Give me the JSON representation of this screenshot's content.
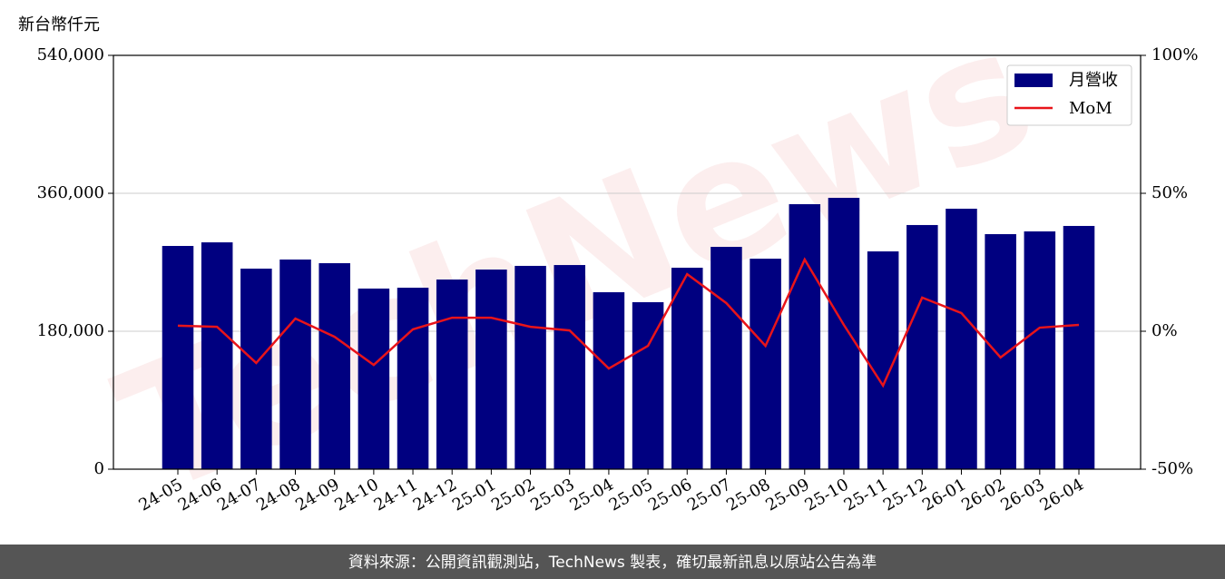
{
  "chart_data": {
    "type": "bar_line",
    "y_axis_label": "新台幣仟元",
    "categories": [
      "24-05",
      "24-06",
      "24-07",
      "24-08",
      "24-09",
      "24-10",
      "24-11",
      "24-12",
      "25-01",
      "25-02",
      "25-03",
      "25-04",
      "25-05",
      "25-06",
      "25-07",
      "25-08",
      "25-09",
      "25-10",
      "25-11",
      "25-12",
      "26-01",
      "26-02",
      "26-03",
      "26-04"
    ],
    "series": [
      {
        "name": "月營收",
        "color": "#000080",
        "values": [
          291300,
          296000,
          261700,
          273600,
          268800,
          235700,
          236800,
          247500,
          260500,
          265300,
          266400,
          230900,
          217900,
          262900,
          290100,
          274700,
          345800,
          354100,
          284200,
          318600,
          339900,
          306700,
          310300,
          317400
        ]
      },
      {
        "name": "MoM",
        "color": "#e8141a",
        "axis": "y2",
        "values": [
          2.0,
          1.6,
          -11.5,
          4.6,
          -2.0,
          -12.2,
          0.7,
          4.9,
          4.9,
          1.6,
          0.3,
          -13.5,
          -5.3,
          20.7,
          10.2,
          -5.3,
          26.0,
          2.3,
          -19.7,
          12.2,
          6.6,
          -9.5,
          1.3,
          2.3
        ]
      }
    ],
    "ylim": [
      0,
      540000
    ],
    "yticks": [
      0,
      {
        "value": 180000,
        "label": "180,000"
      },
      {
        "value": 360000,
        "label": "360,000"
      },
      {
        "value": 540000,
        "label": "540,000"
      }
    ],
    "y2lim": [
      -50,
      100
    ],
    "y2ticks": [
      {
        "value": -50,
        "label": "-50%"
      },
      {
        "value": 0,
        "label": "0%"
      },
      {
        "value": 50,
        "label": "50%"
      },
      {
        "value": 100,
        "label": "100%"
      }
    ],
    "grid": true,
    "legend": "upper right",
    "watermark": "TechNews",
    "footer": "資料來源：公開資訊觀測站，TechNews 製表，確切最新訊息以原站公告為準"
  }
}
